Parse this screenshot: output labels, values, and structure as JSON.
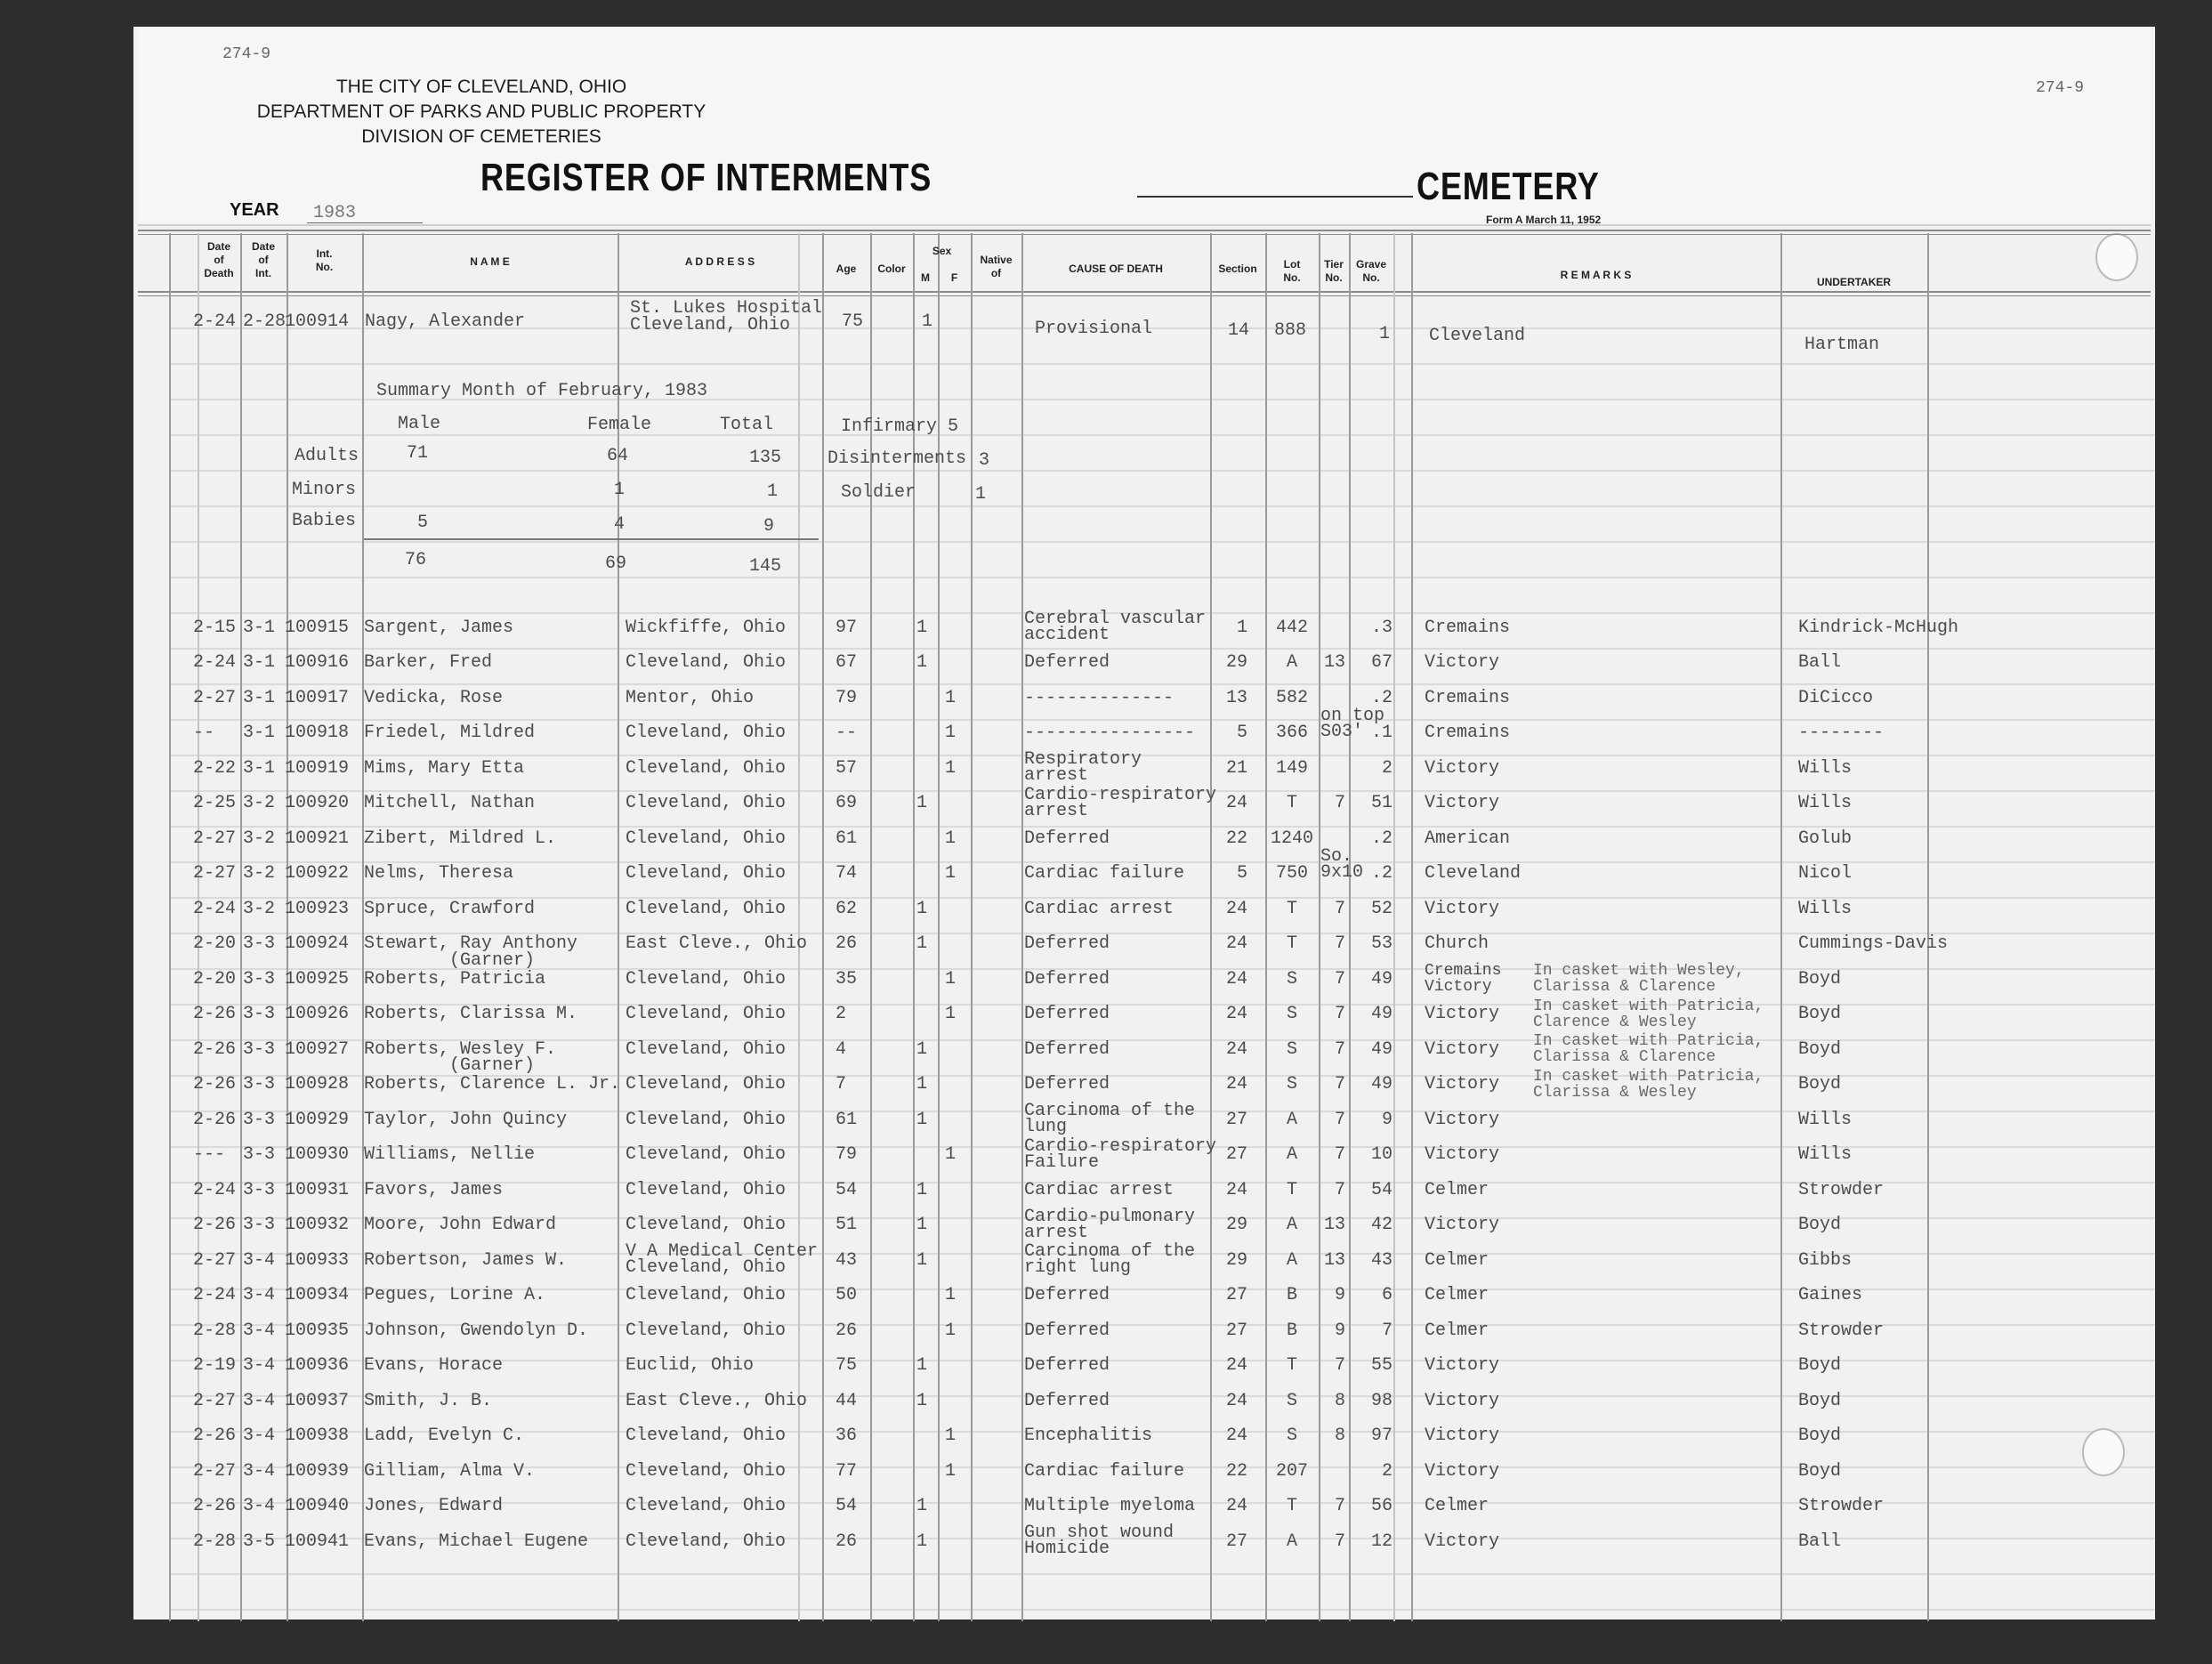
{
  "header": {
    "form_number_left": "274-9",
    "form_number_right": "274-9",
    "city": "THE CITY OF CLEVELAND, OHIO",
    "department": "DEPARTMENT OF PARKS AND PUBLIC PROPERTY",
    "division": "DIVISION OF CEMETERIES",
    "title": "REGISTER OF INTERMENTS",
    "cemetery_label": "CEMETERY",
    "year_label": "YEAR",
    "year_value": "1983",
    "form_note": "Form A March 11, 1952"
  },
  "columns": {
    "date_of_death": "Date\nof\nDeath",
    "date_of_int": "Date\nof\nInt.",
    "int_no": "Int.\nNo.",
    "name": "N A M E",
    "address": "A D D R E S S",
    "age": "Age",
    "color": "Color",
    "sex": "Sex",
    "sex_m": "M",
    "sex_f": "F",
    "native_of": "Native\nof",
    "cause": "CAUSE OF DEATH",
    "section": "Section",
    "lot": "Lot\nNo.",
    "tier": "Tier\nNo.",
    "grave": "Grave\nNo.",
    "remarks": "R E M A R K S",
    "undertaker": "UNDERTAKER"
  },
  "first_entry": {
    "dod": "2-24",
    "doi": "2-28",
    "int_no": "100914",
    "name": "Nagy, Alexander",
    "address": "St. Lukes Hospital\nCleveland, Ohio",
    "age": "75",
    "m": "1",
    "cause": "Provisional",
    "section": "14",
    "lot": "888",
    "grave": "1",
    "cemetery": "Cleveland",
    "undertaker": "Hartman"
  },
  "summary": {
    "title": "Summary Month of February, 1983",
    "male_label": "Male",
    "female_label": "Female",
    "total_label": "Total",
    "adults_label": "Adults",
    "adults_male": "71",
    "adults_female": "64",
    "adults_total": "135",
    "minors_label": "Minors",
    "minors_female": "1",
    "minors_total": "1",
    "babies_label": "Babies",
    "babies_male": "5",
    "babies_female": "4",
    "babies_total": "9",
    "total_male": "76",
    "total_female": "69",
    "grand_total": "145",
    "infirmary": "Infirmary 5",
    "disinterments_label": "Disinterments",
    "disinterments": "3",
    "soldier_label": "Soldier",
    "soldier": "1"
  },
  "rows": [
    {
      "dod": "2-15",
      "doi": "3-1",
      "int_no": "100915",
      "name": "Sargent, James",
      "address": "Wickfiffe, Ohio",
      "age": "97",
      "m": "1",
      "cause": "Cerebral vascular\naccident",
      "section": "1",
      "lot": "442",
      "grave": ".3",
      "cemetery": "Cremains",
      "undertaker": "Kindrick-McHugh"
    },
    {
      "dod": "2-24",
      "doi": "3-1",
      "int_no": "100916",
      "name": "Barker, Fred",
      "address": "Cleveland, Ohio",
      "age": "67",
      "m": "1",
      "cause": "Deferred",
      "section": "29",
      "lot": "A",
      "tier": "13",
      "grave": "67",
      "cemetery": "Victory",
      "undertaker": "Ball"
    },
    {
      "dod": "2-27",
      "doi": "3-1",
      "int_no": "100917",
      "name": "Vedicka, Rose",
      "address": "Mentor, Ohio",
      "age": "79",
      "f": "1",
      "cause": "--------------",
      "section": "13",
      "lot": "582",
      "grave": ".2",
      "cemetery": "Cremains",
      "undertaker": "DiCicco"
    },
    {
      "dod": "--",
      "doi": "3-1",
      "int_no": "100918",
      "name": "Friedel, Mildred",
      "address": "Cleveland, Ohio",
      "age": "--",
      "f": "1",
      "cause": "----------------",
      "section": "5",
      "lot": "366",
      "tier": "on top\nS03'",
      "grave": ".1",
      "cemetery": "Cremains",
      "undertaker": "--------"
    },
    {
      "dod": "2-22",
      "doi": "3-1",
      "int_no": "100919",
      "name": "Mims, Mary Etta",
      "address": "Cleveland, Ohio",
      "age": "57",
      "f": "1",
      "cause": "Respiratory\narrest",
      "section": "21",
      "lot": "149",
      "grave": "2",
      "cemetery": "Victory",
      "undertaker": "Wills"
    },
    {
      "dod": "2-25",
      "doi": "3-2",
      "int_no": "100920",
      "name": "Mitchell, Nathan",
      "address": "Cleveland, Ohio",
      "age": "69",
      "m": "1",
      "cause": "Cardio-respiratory\narrest",
      "section": "24",
      "lot": "T",
      "tier": "7",
      "grave": "51",
      "cemetery": "Victory",
      "undertaker": "Wills"
    },
    {
      "dod": "2-27",
      "doi": "3-2",
      "int_no": "100921",
      "name": "Zibert, Mildred L.",
      "address": "Cleveland, Ohio",
      "age": "61",
      "f": "1",
      "cause": "Deferred",
      "section": "22",
      "lot": "1240",
      "grave": ".2",
      "cemetery": "American",
      "undertaker": "Golub"
    },
    {
      "dod": "2-27",
      "doi": "3-2",
      "int_no": "100922",
      "name": "Nelms, Theresa",
      "address": "Cleveland, Ohio",
      "age": "74",
      "f": "1",
      "cause": "Cardiac failure",
      "section": "5",
      "lot": "750",
      "tier": "So.\n9x10",
      "grave": ".2",
      "cemetery": "Cleveland",
      "undertaker": "Nicol"
    },
    {
      "dod": "2-24",
      "doi": "3-2",
      "int_no": "100923",
      "name": "Spruce, Crawford",
      "address": "Cleveland, Ohio",
      "age": "62",
      "m": "1",
      "cause": "Cardiac arrest",
      "section": "24",
      "lot": "T",
      "tier": "7",
      "grave": "52",
      "cemetery": "Victory",
      "undertaker": "Wills"
    },
    {
      "dod": "2-20",
      "doi": "3-3",
      "int_no": "100924",
      "name": "Stewart, Ray Anthony",
      "name_note": "(Garner)",
      "address": "East Cleve., Ohio",
      "age": "26",
      "m": "1",
      "cause": "Deferred",
      "section": "24",
      "lot": "T",
      "tier": "7",
      "grave": "53",
      "cemetery": "Church",
      "undertaker": "Cummings-Davis"
    },
    {
      "dod": "2-20",
      "doi": "3-3",
      "int_no": "100925",
      "name": "Roberts, Patricia",
      "address": "Cleveland, Ohio",
      "age": "35",
      "f": "1",
      "cause": "Deferred",
      "section": "24",
      "lot": "S",
      "tier": "7",
      "grave": "49",
      "cemetery": "Cremains\nVictory",
      "remarks": "In casket with Wesley,\nClarissa & Clarence",
      "undertaker": "Boyd"
    },
    {
      "dod": "2-26",
      "doi": "3-3",
      "int_no": "100926",
      "name": "Roberts, Clarissa M.",
      "address": "Cleveland, Ohio",
      "age": "2",
      "f": "1",
      "cause": "Deferred",
      "section": "24",
      "lot": "S",
      "tier": "7",
      "grave": "49",
      "cemetery": "Victory",
      "remarks": "In casket with Patricia,\nClarence & Wesley",
      "undertaker": "Boyd"
    },
    {
      "dod": "2-26",
      "doi": "3-3",
      "int_no": "100927",
      "name": "Roberts, Wesley F.",
      "name_note": "(Garner)",
      "address": "Cleveland, Ohio",
      "age": "4",
      "m": "1",
      "cause": "Deferred",
      "section": "24",
      "lot": "S",
      "tier": "7",
      "grave": "49",
      "cemetery": "Victory",
      "remarks": "In casket with Patricia,\nClarissa & Clarence",
      "undertaker": "Boyd"
    },
    {
      "dod": "2-26",
      "doi": "3-3",
      "int_no": "100928",
      "name": "Roberts, Clarence L. Jr.",
      "address": "Cleveland, Ohio",
      "age": "7",
      "m": "1",
      "cause": "Deferred",
      "section": "24",
      "lot": "S",
      "tier": "7",
      "grave": "49",
      "cemetery": "Victory",
      "remarks": "In casket with Patricia,\nClarissa & Wesley",
      "undertaker": "Boyd"
    },
    {
      "dod": "2-26",
      "doi": "3-3",
      "int_no": "100929",
      "name": "Taylor, John Quincy",
      "address": "Cleveland, Ohio",
      "age": "61",
      "m": "1",
      "cause": "Carcinoma of the\nlung",
      "section": "27",
      "lot": "A",
      "tier": "7",
      "grave": "9",
      "cemetery": "Victory",
      "undertaker": "Wills"
    },
    {
      "dod": "---",
      "doi": "3-3",
      "int_no": "100930",
      "name": "Williams, Nellie",
      "address": "Cleveland, Ohio",
      "age": "79",
      "f": "1",
      "cause": "Cardio-respiratory\nFailure",
      "section": "27",
      "lot": "A",
      "tier": "7",
      "grave": "10",
      "cemetery": "Victory",
      "undertaker": "Wills"
    },
    {
      "dod": "2-24",
      "doi": "3-3",
      "int_no": "100931",
      "name": "Favors, James",
      "address": "Cleveland, Ohio",
      "age": "54",
      "m": "1",
      "cause": "Cardiac arrest",
      "section": "24",
      "lot": "T",
      "tier": "7",
      "grave": "54",
      "cemetery": "Celmer",
      "undertaker": "Strowder"
    },
    {
      "dod": "2-26",
      "doi": "3-3",
      "int_no": "100932",
      "name": "Moore, John Edward",
      "address": "Cleveland, Ohio",
      "age": "51",
      "m": "1",
      "cause": "Cardio-pulmonary\narrest",
      "section": "29",
      "lot": "A",
      "tier": "13",
      "grave": "42",
      "cemetery": "Victory",
      "undertaker": "Boyd"
    },
    {
      "dod": "2-27",
      "doi": "3-4",
      "int_no": "100933",
      "name": "Robertson, James W.",
      "address": "V A Medical Center\nCleveland, Ohio",
      "age": "43",
      "m": "1",
      "cause": "Carcinoma of the\nright lung",
      "section": "29",
      "lot": "A",
      "tier": "13",
      "grave": "43",
      "cemetery": "Celmer",
      "undertaker": "Gibbs"
    },
    {
      "dod": "2-24",
      "doi": "3-4",
      "int_no": "100934",
      "name": "Pegues, Lorine A.",
      "address": "Cleveland, Ohio",
      "age": "50",
      "f": "1",
      "cause": "Deferred",
      "section": "27",
      "lot": "B",
      "tier": "9",
      "grave": "6",
      "cemetery": "Celmer",
      "undertaker": "Gaines"
    },
    {
      "dod": "2-28",
      "doi": "3-4",
      "int_no": "100935",
      "name": "Johnson, Gwendolyn D.",
      "address": "Cleveland, Ohio",
      "age": "26",
      "f": "1",
      "cause": "Deferred",
      "section": "27",
      "lot": "B",
      "tier": "9",
      "grave": "7",
      "cemetery": "Celmer",
      "undertaker": "Strowder"
    },
    {
      "dod": "2-19",
      "doi": "3-4",
      "int_no": "100936",
      "name": "Evans, Horace",
      "address": "Euclid, Ohio",
      "age": "75",
      "m": "1",
      "cause": "Deferred",
      "section": "24",
      "lot": "T",
      "tier": "7",
      "grave": "55",
      "cemetery": "Victory",
      "undertaker": "Boyd"
    },
    {
      "dod": "2-27",
      "doi": "3-4",
      "int_no": "100937",
      "name": "Smith, J. B.",
      "address": "East Cleve., Ohio",
      "age": "44",
      "m": "1",
      "cause": "Deferred",
      "section": "24",
      "lot": "S",
      "tier": "8",
      "grave": "98",
      "cemetery": "Victory",
      "undertaker": "Boyd"
    },
    {
      "dod": "2-26",
      "doi": "3-4",
      "int_no": "100938",
      "name": "Ladd, Evelyn C.",
      "address": "Cleveland, Ohio",
      "age": "36",
      "f": "1",
      "cause": "Encephalitis",
      "section": "24",
      "lot": "S",
      "tier": "8",
      "grave": "97",
      "cemetery": "Victory",
      "undertaker": "Boyd"
    },
    {
      "dod": "2-27",
      "doi": "3-4",
      "int_no": "100939",
      "name": "Gilliam, Alma V.",
      "address": "Cleveland, Ohio",
      "age": "77",
      "f": "1",
      "cause": "Cardiac failure",
      "section": "22",
      "lot": "207",
      "grave": "2",
      "cemetery": "Victory",
      "undertaker": "Boyd"
    },
    {
      "dod": "2-26",
      "doi": "3-4",
      "int_no": "100940",
      "name": "Jones, Edward",
      "address": "Cleveland, Ohio",
      "age": "54",
      "m": "1",
      "cause": "Multiple myeloma",
      "section": "24",
      "lot": "T",
      "tier": "7",
      "grave": "56",
      "cemetery": "Celmer",
      "undertaker": "Strowder"
    },
    {
      "dod": "2-28",
      "doi": "3-5",
      "int_no": "100941",
      "name": "Evans, Michael Eugene",
      "address": "Cleveland, Ohio",
      "age": "26",
      "m": "1",
      "cause": "Gun shot wound\nHomicide",
      "section": "27",
      "lot": "A",
      "tier": "7",
      "grave": "12",
      "cemetery": "Victory",
      "undertaker": "Ball"
    }
  ]
}
